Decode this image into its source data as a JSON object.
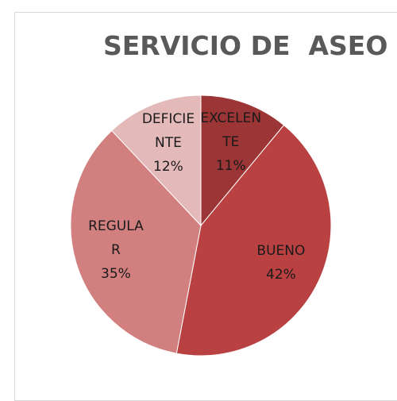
{
  "chart_data": {
    "type": "pie",
    "title": "SERVICIO DE  ASEO",
    "categories": [
      "EXCELENTE",
      "BUENO",
      "REGULAR",
      "DEFICIENTE"
    ],
    "values": [
      11,
      42,
      35,
      12
    ],
    "value_labels": [
      "11%",
      "42%",
      "35%",
      "12%"
    ],
    "colors": [
      "#9c3535",
      "#ba4141",
      "#d27f7f",
      "#e4b9b9"
    ]
  }
}
